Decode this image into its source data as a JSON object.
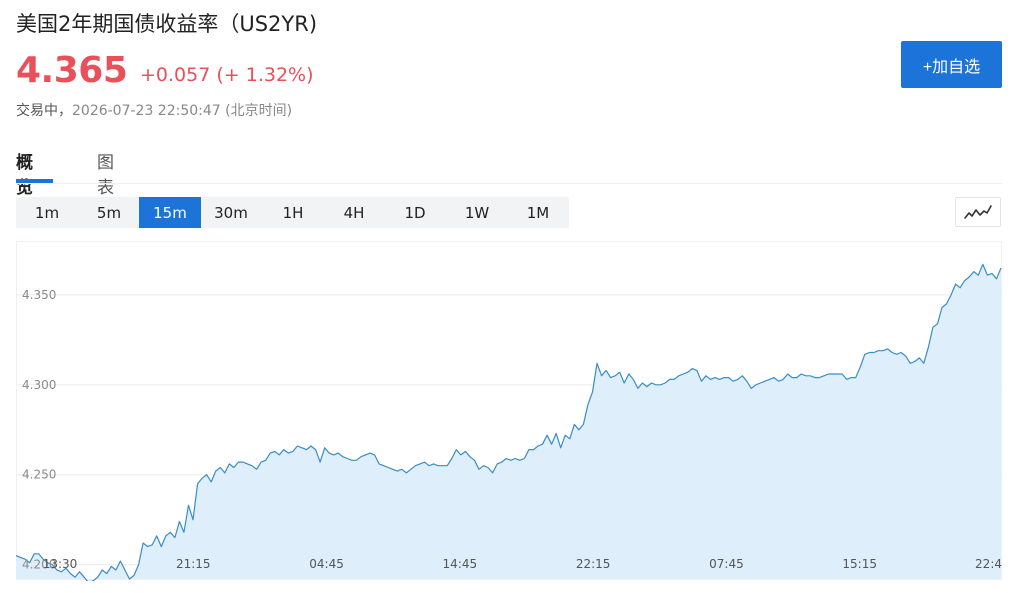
{
  "header": {
    "title": "美国2年期国债收益率（US2YR)",
    "price": "4.365",
    "change": "+0.057 (+ 1.32%)",
    "status_label": "交易中，",
    "timestamp": "2026-07-23 22:50:47 (北京时间)",
    "add_button": "+加自选"
  },
  "tabs": [
    "概览",
    "图表"
  ],
  "intervals": [
    "1m",
    "5m",
    "15m",
    "30m",
    "1H",
    "4H",
    "1D",
    "1W",
    "1M"
  ],
  "active_interval": "15m",
  "colors": {
    "up": "#e9505a",
    "accent": "#1c74d8",
    "line": "#3a8dc5",
    "area": "#deeefb"
  },
  "chart_data": {
    "type": "area",
    "ylim": [
      4.192,
      4.38
    ],
    "y_ticks": [
      "4.200",
      "4.250",
      "4.300",
      "4.350"
    ],
    "x_ticks": [
      "13:30",
      "21:15",
      "04:45",
      "14:45",
      "22:15",
      "07:45",
      "15:15",
      "22:4"
    ],
    "grid": true,
    "series": [
      {
        "values": [
          4.205,
          4.204,
          4.203,
          4.201,
          4.206,
          4.206,
          4.203,
          4.201,
          4.2,
          4.197,
          4.196,
          4.198,
          4.195,
          4.193,
          4.196,
          4.193,
          4.19,
          4.191,
          4.193,
          4.197,
          4.195,
          4.199,
          4.197,
          4.202,
          4.197,
          4.192,
          4.194,
          4.2,
          4.212,
          4.21,
          4.211,
          4.216,
          4.21,
          4.216,
          4.218,
          4.215,
          4.224,
          4.218,
          4.233,
          4.225,
          4.245,
          4.248,
          4.25,
          4.246,
          4.252,
          4.254,
          4.251,
          4.256,
          4.254,
          4.257,
          4.257,
          4.256,
          4.255,
          4.253,
          4.257,
          4.258,
          4.262,
          4.263,
          4.261,
          4.264,
          4.262,
          4.263,
          4.266,
          4.265,
          4.264,
          4.266,
          4.264,
          4.257,
          4.265,
          4.262,
          4.261,
          4.262,
          4.26,
          4.259,
          4.258,
          4.258,
          4.26,
          4.261,
          4.262,
          4.261,
          4.256,
          4.255,
          4.254,
          4.253,
          4.252,
          4.253,
          4.251,
          4.253,
          4.255,
          4.256,
          4.257,
          4.255,
          4.256,
          4.255,
          4.255,
          4.255,
          4.259,
          4.264,
          4.261,
          4.263,
          4.26,
          4.258,
          4.253,
          4.255,
          4.254,
          4.251,
          4.256,
          4.257,
          4.259,
          4.258,
          4.259,
          4.258,
          4.259,
          4.264,
          4.264,
          4.266,
          4.267,
          4.272,
          4.267,
          4.273,
          4.265,
          4.272,
          4.27,
          4.278,
          4.275,
          4.278,
          4.289,
          4.296,
          4.312,
          4.305,
          4.308,
          4.304,
          4.305,
          4.307,
          4.301,
          4.306,
          4.303,
          4.298,
          4.301,
          4.299,
          4.301,
          4.3,
          4.3,
          4.301,
          4.303,
          4.303,
          4.305,
          4.306,
          4.307,
          4.309,
          4.308,
          4.302,
          4.305,
          4.303,
          4.304,
          4.303,
          4.304,
          4.304,
          4.302,
          4.303,
          4.305,
          4.302,
          4.298,
          4.3,
          4.301,
          4.302,
          4.303,
          4.304,
          4.302,
          4.303,
          4.306,
          4.304,
          4.304,
          4.306,
          4.305,
          4.305,
          4.304,
          4.304,
          4.305,
          4.306,
          4.306,
          4.306,
          4.306,
          4.303,
          4.304,
          4.304,
          4.31,
          4.317,
          4.318,
          4.318,
          4.319,
          4.319,
          4.32,
          4.318,
          4.317,
          4.318,
          4.316,
          4.312,
          4.313,
          4.315,
          4.312,
          4.321,
          4.332,
          4.334,
          4.343,
          4.345,
          4.35,
          4.356,
          4.354,
          4.358,
          4.36,
          4.363,
          4.361,
          4.367,
          4.361,
          4.362,
          4.359,
          4.365
        ]
      }
    ]
  }
}
